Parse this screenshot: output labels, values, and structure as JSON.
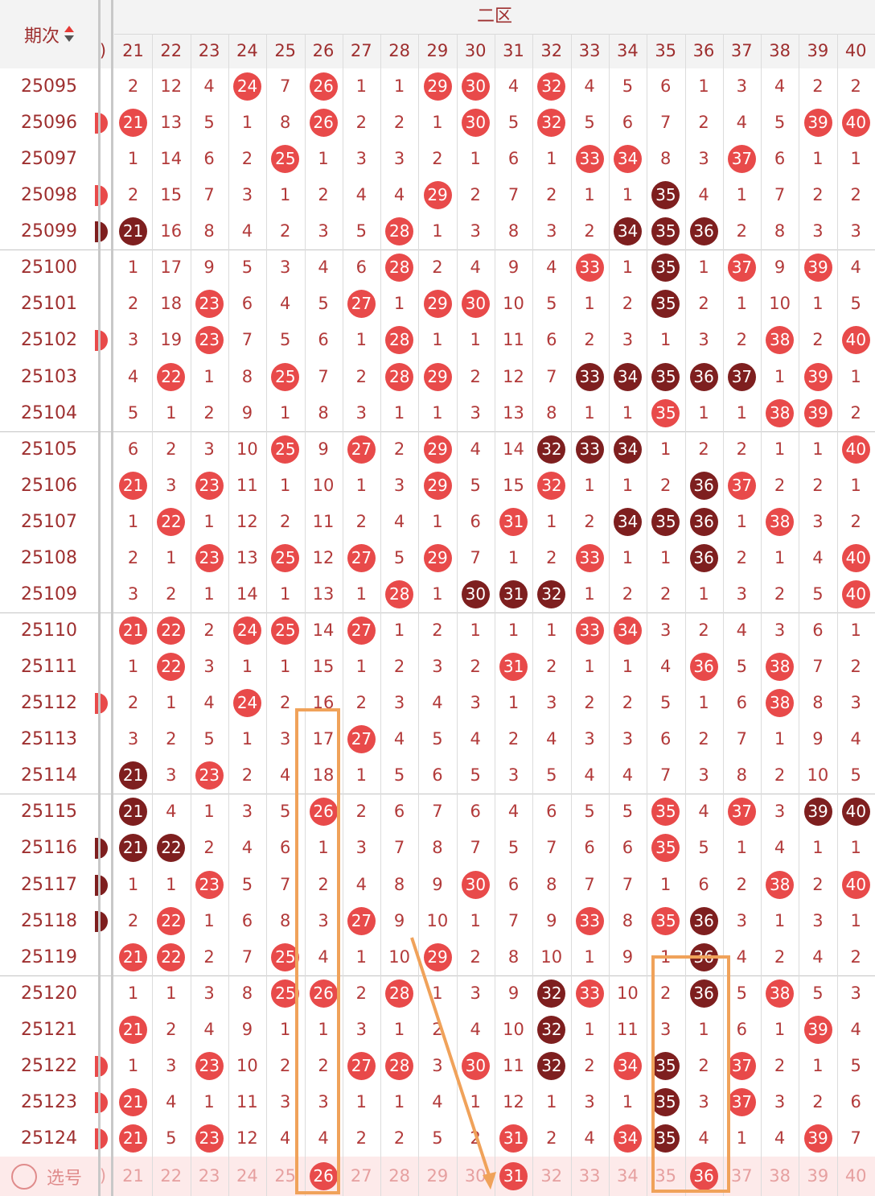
{
  "header": {
    "period_label": "期次",
    "zone_title": "二区",
    "prev_col_fragment": ")",
    "columns": [
      "21",
      "22",
      "23",
      "24",
      "25",
      "26",
      "27",
      "28",
      "29",
      "30",
      "31",
      "32",
      "33",
      "34",
      "35",
      "36",
      "37",
      "38",
      "39",
      "40"
    ]
  },
  "colors": {
    "hit_red": "#e84a4a",
    "hit_dark": "#7e1f1f",
    "miss_text": "#b23a3a",
    "annotation": "#f0a25a"
  },
  "rows": [
    {
      "id": "25095",
      "edge": null,
      "cells": [
        "2",
        "12",
        "4",
        "24",
        "7",
        "26",
        "1",
        "1",
        "29",
        "30",
        "4",
        "32",
        "4",
        "5",
        "6",
        "1",
        "3",
        "4",
        "2",
        "2"
      ],
      "hits": {
        "24": "r",
        "26": "r",
        "29": "r",
        "30": "r",
        "32": "r"
      }
    },
    {
      "id": "25096",
      "edge": "r",
      "cells": [
        "21",
        "13",
        "5",
        "1",
        "8",
        "26",
        "2",
        "2",
        "1",
        "30",
        "5",
        "32",
        "5",
        "6",
        "7",
        "2",
        "4",
        "5",
        "39",
        "40"
      ],
      "hits": {
        "21": "r",
        "26": "r",
        "30": "r",
        "32": "r",
        "39": "r",
        "40": "r"
      }
    },
    {
      "id": "25097",
      "edge": null,
      "cells": [
        "1",
        "14",
        "6",
        "2",
        "25",
        "1",
        "3",
        "3",
        "2",
        "1",
        "6",
        "1",
        "33",
        "34",
        "8",
        "3",
        "37",
        "6",
        "1",
        "1"
      ],
      "hits": {
        "25": "r",
        "33": "r",
        "34": "r",
        "37": "r"
      }
    },
    {
      "id": "25098",
      "edge": "r",
      "cells": [
        "2",
        "15",
        "7",
        "3",
        "1",
        "2",
        "4",
        "4",
        "29",
        "2",
        "7",
        "2",
        "1",
        "1",
        "35",
        "4",
        "1",
        "7",
        "2",
        "2"
      ],
      "hits": {
        "29": "r",
        "35": "d"
      }
    },
    {
      "id": "25099",
      "edge": "d",
      "cells": [
        "21",
        "16",
        "8",
        "4",
        "2",
        "3",
        "5",
        "28",
        "1",
        "3",
        "8",
        "3",
        "2",
        "34",
        "35",
        "36",
        "2",
        "8",
        "3",
        "3"
      ],
      "hits": {
        "21": "d",
        "28": "r",
        "34": "d",
        "35": "d",
        "36": "d"
      }
    },
    {
      "id": "25100",
      "edge": null,
      "cells": [
        "1",
        "17",
        "9",
        "5",
        "3",
        "4",
        "6",
        "28",
        "2",
        "4",
        "9",
        "4",
        "33",
        "1",
        "35",
        "1",
        "37",
        "9",
        "39",
        "4"
      ],
      "hits": {
        "28": "r",
        "33": "r",
        "35": "d",
        "37": "r",
        "39": "r"
      }
    },
    {
      "id": "25101",
      "edge": null,
      "cells": [
        "2",
        "18",
        "23",
        "6",
        "4",
        "5",
        "27",
        "1",
        "29",
        "30",
        "10",
        "5",
        "1",
        "2",
        "35",
        "2",
        "1",
        "10",
        "1",
        "5"
      ],
      "hits": {
        "23": "r",
        "27": "r",
        "29": "r",
        "30": "r",
        "35": "d"
      }
    },
    {
      "id": "25102",
      "edge": "r",
      "cells": [
        "3",
        "19",
        "23",
        "7",
        "5",
        "6",
        "1",
        "28",
        "1",
        "1",
        "11",
        "6",
        "2",
        "3",
        "1",
        "3",
        "2",
        "38",
        "2",
        "40"
      ],
      "hits": {
        "23": "r",
        "28": "r",
        "38": "r",
        "40": "r"
      }
    },
    {
      "id": "25103",
      "edge": null,
      "cells": [
        "4",
        "22",
        "1",
        "8",
        "25",
        "7",
        "2",
        "28",
        "29",
        "2",
        "12",
        "7",
        "33",
        "34",
        "35",
        "36",
        "37",
        "1",
        "39",
        "1"
      ],
      "hits": {
        "22": "r",
        "25": "r",
        "28": "r",
        "29": "r",
        "33": "d",
        "34": "d",
        "35": "d",
        "36": "d",
        "37": "d",
        "39": "r"
      }
    },
    {
      "id": "25104",
      "edge": null,
      "cells": [
        "5",
        "1",
        "2",
        "9",
        "1",
        "8",
        "3",
        "1",
        "1",
        "3",
        "13",
        "8",
        "1",
        "1",
        "35",
        "1",
        "1",
        "38",
        "39",
        "2"
      ],
      "hits": {
        "35": "r",
        "38": "r",
        "39": "r"
      }
    },
    {
      "id": "25105",
      "edge": null,
      "cells": [
        "6",
        "2",
        "3",
        "10",
        "25",
        "9",
        "27",
        "2",
        "29",
        "4",
        "14",
        "32",
        "33",
        "34",
        "1",
        "2",
        "2",
        "1",
        "1",
        "40"
      ],
      "hits": {
        "25": "r",
        "27": "r",
        "29": "r",
        "32": "d",
        "33": "d",
        "34": "d",
        "40": "r"
      }
    },
    {
      "id": "25106",
      "edge": null,
      "cells": [
        "21",
        "3",
        "23",
        "11",
        "1",
        "10",
        "1",
        "3",
        "29",
        "5",
        "15",
        "32",
        "1",
        "1",
        "2",
        "36",
        "37",
        "2",
        "2",
        "1"
      ],
      "hits": {
        "21": "r",
        "23": "r",
        "29": "r",
        "32": "r",
        "36": "d",
        "37": "r"
      }
    },
    {
      "id": "25107",
      "edge": null,
      "cells": [
        "1",
        "22",
        "1",
        "12",
        "2",
        "11",
        "2",
        "4",
        "1",
        "6",
        "31",
        "1",
        "2",
        "34",
        "35",
        "36",
        "1",
        "38",
        "3",
        "2"
      ],
      "hits": {
        "22": "r",
        "31": "r",
        "34": "d",
        "35": "d",
        "36": "d",
        "38": "r"
      }
    },
    {
      "id": "25108",
      "edge": null,
      "cells": [
        "2",
        "1",
        "23",
        "13",
        "25",
        "12",
        "27",
        "5",
        "29",
        "7",
        "1",
        "2",
        "33",
        "1",
        "1",
        "36",
        "2",
        "1",
        "4",
        "40"
      ],
      "hits": {
        "23": "r",
        "25": "r",
        "27": "r",
        "29": "r",
        "33": "r",
        "36": "d",
        "40": "r"
      }
    },
    {
      "id": "25109",
      "edge": null,
      "cells": [
        "3",
        "2",
        "1",
        "14",
        "1",
        "13",
        "1",
        "28",
        "1",
        "30",
        "31",
        "32",
        "1",
        "2",
        "2",
        "1",
        "3",
        "2",
        "5",
        "40"
      ],
      "hits": {
        "28": "r",
        "30": "d",
        "31": "d",
        "32": "d",
        "40": "r"
      }
    },
    {
      "id": "25110",
      "edge": null,
      "cells": [
        "21",
        "22",
        "2",
        "24",
        "25",
        "14",
        "27",
        "1",
        "2",
        "1",
        "1",
        "1",
        "33",
        "34",
        "3",
        "2",
        "4",
        "3",
        "6",
        "1"
      ],
      "hits": {
        "21": "r",
        "22": "r",
        "24": "r",
        "25": "r",
        "27": "r",
        "33": "r",
        "34": "r"
      }
    },
    {
      "id": "25111",
      "edge": null,
      "cells": [
        "1",
        "22",
        "3",
        "1",
        "1",
        "15",
        "1",
        "2",
        "3",
        "2",
        "31",
        "2",
        "1",
        "1",
        "4",
        "36",
        "5",
        "38",
        "7",
        "2"
      ],
      "hits": {
        "22": "r",
        "31": "r",
        "36": "r",
        "38": "r"
      }
    },
    {
      "id": "25112",
      "edge": "r",
      "cells": [
        "2",
        "1",
        "4",
        "24",
        "2",
        "16",
        "2",
        "3",
        "4",
        "3",
        "1",
        "3",
        "2",
        "2",
        "5",
        "1",
        "6",
        "38",
        "8",
        "3"
      ],
      "hits": {
        "24": "r",
        "38": "r"
      }
    },
    {
      "id": "25113",
      "edge": null,
      "cells": [
        "3",
        "2",
        "5",
        "1",
        "3",
        "17",
        "27",
        "4",
        "5",
        "4",
        "2",
        "4",
        "3",
        "3",
        "6",
        "2",
        "7",
        "1",
        "9",
        "4"
      ],
      "hits": {
        "27": "r"
      }
    },
    {
      "id": "25114",
      "edge": null,
      "cells": [
        "21",
        "3",
        "23",
        "2",
        "4",
        "18",
        "1",
        "5",
        "6",
        "5",
        "3",
        "5",
        "4",
        "4",
        "7",
        "3",
        "8",
        "2",
        "10",
        "5"
      ],
      "hits": {
        "21": "d",
        "23": "r"
      }
    },
    {
      "id": "25115",
      "edge": null,
      "cells": [
        "21",
        "4",
        "1",
        "3",
        "5",
        "26",
        "2",
        "6",
        "7",
        "6",
        "4",
        "6",
        "5",
        "5",
        "35",
        "4",
        "37",
        "3",
        "39",
        "40"
      ],
      "hits": {
        "21": "d",
        "26": "r",
        "35": "r",
        "37": "r",
        "39": "d",
        "40": "d"
      }
    },
    {
      "id": "25116",
      "edge": "d",
      "cells": [
        "21",
        "22",
        "2",
        "4",
        "6",
        "1",
        "3",
        "7",
        "8",
        "7",
        "5",
        "7",
        "6",
        "6",
        "35",
        "5",
        "1",
        "4",
        "1",
        "1"
      ],
      "hits": {
        "21": "d",
        "22": "d",
        "35": "r"
      }
    },
    {
      "id": "25117",
      "edge": "d",
      "cells": [
        "1",
        "1",
        "23",
        "5",
        "7",
        "2",
        "4",
        "8",
        "9",
        "30",
        "6",
        "8",
        "7",
        "7",
        "1",
        "6",
        "2",
        "38",
        "2",
        "40"
      ],
      "hits": {
        "23": "r",
        "30": "r",
        "38": "r",
        "40": "r"
      }
    },
    {
      "id": "25118",
      "edge": "d",
      "cells": [
        "2",
        "22",
        "1",
        "6",
        "8",
        "3",
        "27",
        "9",
        "10",
        "1",
        "7",
        "9",
        "33",
        "8",
        "35",
        "36",
        "3",
        "1",
        "3",
        "1"
      ],
      "hits": {
        "22": "r",
        "27": "r",
        "33": "r",
        "35": "r",
        "36": "d"
      }
    },
    {
      "id": "25119",
      "edge": null,
      "cells": [
        "21",
        "22",
        "2",
        "7",
        "25",
        "4",
        "1",
        "10",
        "29",
        "2",
        "8",
        "10",
        "1",
        "9",
        "1",
        "36",
        "4",
        "2",
        "4",
        "2"
      ],
      "hits": {
        "21": "r",
        "22": "r",
        "25": "r",
        "29": "r",
        "36": "d"
      }
    },
    {
      "id": "25120",
      "edge": null,
      "cells": [
        "1",
        "1",
        "3",
        "8",
        "25",
        "26",
        "2",
        "28",
        "1",
        "3",
        "9",
        "32",
        "33",
        "10",
        "2",
        "36",
        "5",
        "38",
        "5",
        "3"
      ],
      "hits": {
        "25": "r",
        "26": "r",
        "28": "r",
        "32": "d",
        "33": "r",
        "36": "d",
        "38": "r"
      }
    },
    {
      "id": "25121",
      "edge": null,
      "cells": [
        "21",
        "2",
        "4",
        "9",
        "1",
        "1",
        "3",
        "1",
        "2",
        "4",
        "10",
        "32",
        "1",
        "11",
        "3",
        "1",
        "6",
        "1",
        "39",
        "4"
      ],
      "hits": {
        "21": "r",
        "32": "d",
        "39": "r"
      }
    },
    {
      "id": "25122",
      "edge": "r",
      "cells": [
        "1",
        "3",
        "23",
        "10",
        "2",
        "2",
        "27",
        "28",
        "3",
        "30",
        "11",
        "32",
        "2",
        "34",
        "35",
        "2",
        "37",
        "2",
        "1",
        "5"
      ],
      "hits": {
        "23": "r",
        "27": "r",
        "28": "r",
        "30": "r",
        "32": "d",
        "34": "r",
        "35": "d",
        "37": "r"
      }
    },
    {
      "id": "25123",
      "edge": "r",
      "cells": [
        "21",
        "4",
        "1",
        "11",
        "3",
        "3",
        "1",
        "1",
        "4",
        "1",
        "12",
        "1",
        "3",
        "1",
        "35",
        "3",
        "37",
        "3",
        "2",
        "6"
      ],
      "hits": {
        "21": "r",
        "35": "d",
        "37": "r"
      }
    },
    {
      "id": "25124",
      "edge": "r",
      "cells": [
        "21",
        "5",
        "23",
        "12",
        "4",
        "4",
        "2",
        "2",
        "5",
        "2",
        "31",
        "2",
        "4",
        "34",
        "35",
        "4",
        "1",
        "4",
        "39",
        "7"
      ],
      "hits": {
        "21": "r",
        "23": "r",
        "31": "r",
        "34": "r",
        "35": "d",
        "39": "r"
      }
    }
  ],
  "footer": {
    "select_label": "选号",
    "edge_fragment": ")",
    "cells": [
      "21",
      "22",
      "23",
      "24",
      "25",
      "26",
      "27",
      "28",
      "29",
      "30",
      "31",
      "32",
      "33",
      "34",
      "35",
      "36",
      "37",
      "38",
      "39",
      "40"
    ],
    "selected": [
      "26",
      "31",
      "36"
    ]
  }
}
